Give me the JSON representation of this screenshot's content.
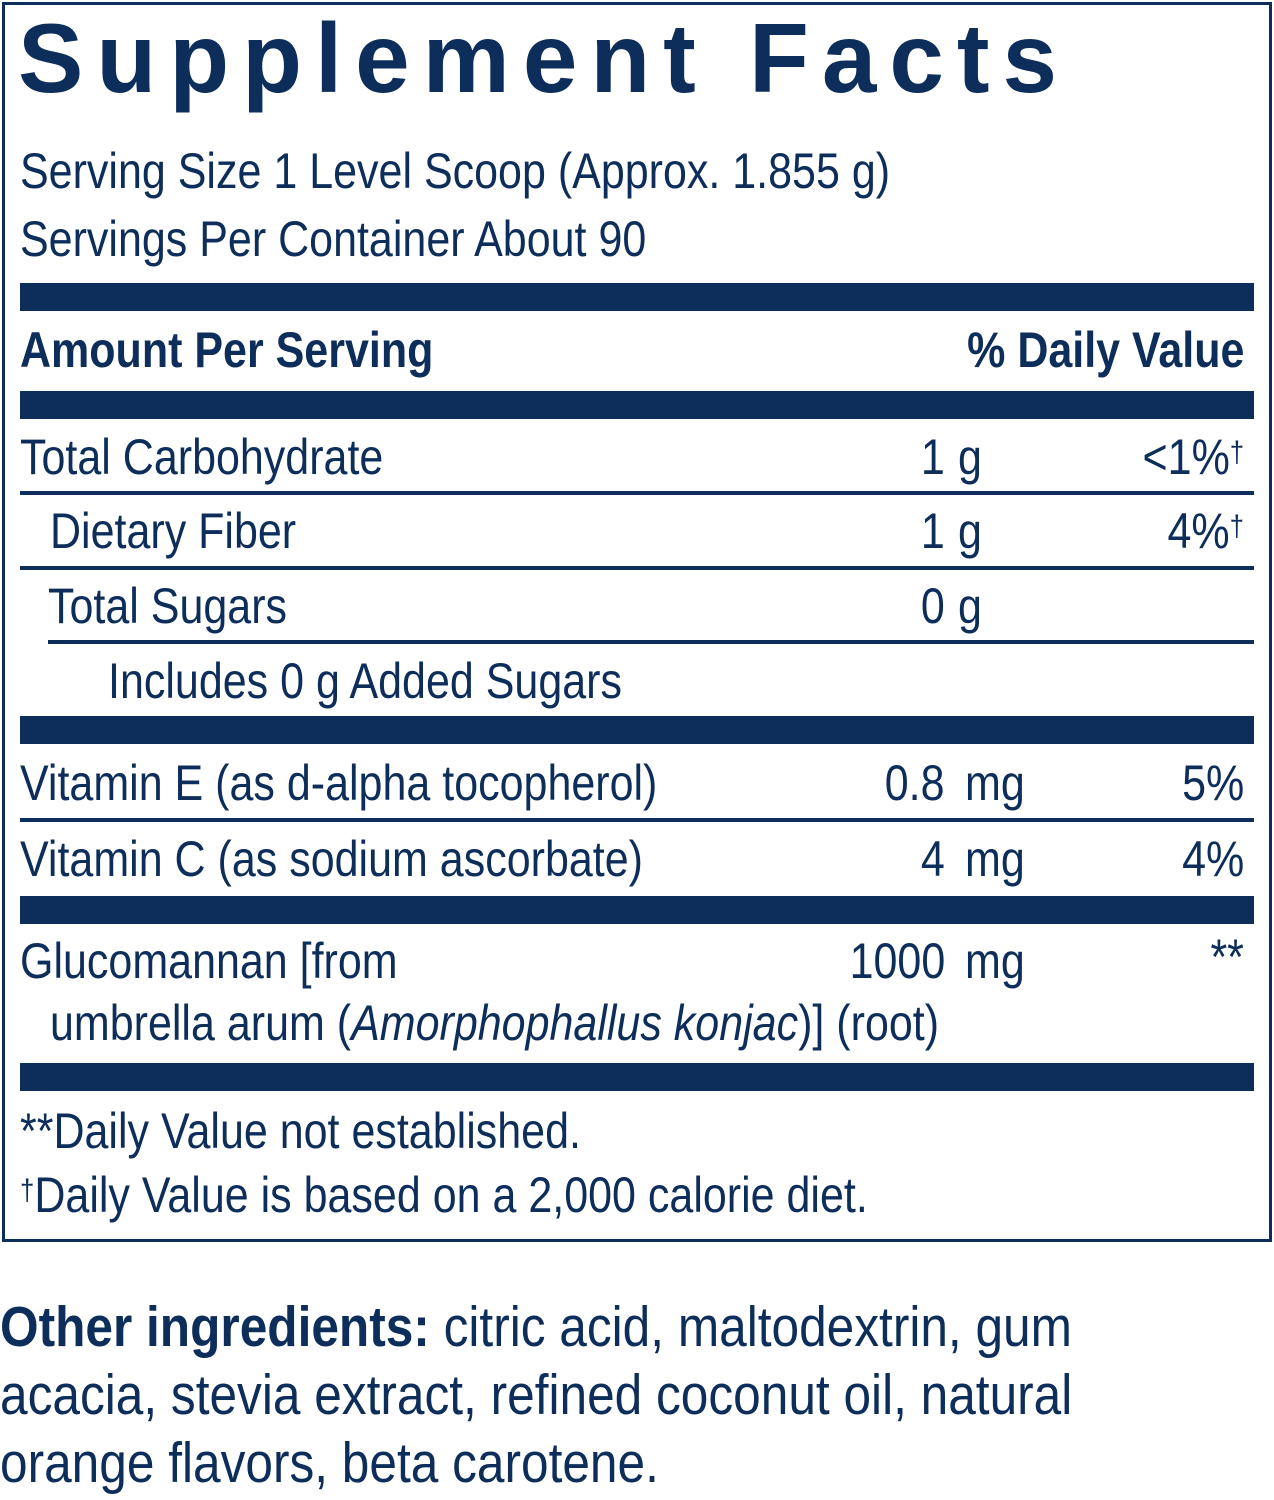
{
  "title": "Supplement Facts",
  "serving_size": "Serving Size 1 Level Scoop (Approx. 1.855 g)",
  "servings_per_container": "Servings Per Container About 90",
  "header": {
    "amount": "Amount Per Serving",
    "daily_value": "% Daily Value"
  },
  "rows": [
    {
      "name": "Total Carbohydrate",
      "qty": "1",
      "unit": "g",
      "dv": "<1%",
      "dv_mark": "†"
    },
    {
      "name": "Dietary Fiber",
      "qty": "1",
      "unit": "g",
      "dv": "4%",
      "dv_mark": "†"
    },
    {
      "name": "Total Sugars",
      "qty": "0",
      "unit": "g",
      "dv": "",
      "dv_mark": ""
    },
    {
      "name": "Includes 0 g Added Sugars"
    },
    {
      "name": "Vitamin E (as d-alpha tocopherol)",
      "qty": "0.8",
      "unit": "mg",
      "dv": "5%"
    },
    {
      "name": "Vitamin C (as sodium ascorbate)",
      "qty": "4",
      "unit": "mg",
      "dv": "4%"
    },
    {
      "name_line1": "Glucomannan [from",
      "name_line2_pre": "umbrella arum (",
      "name_line2_italic": "Amorphophallus konjac",
      "name_line2_post": ")] (root)",
      "qty": "1000",
      "unit": "mg",
      "dv": "**"
    }
  ],
  "footnotes": {
    "dv_not_established": "**Daily Value not established.",
    "dagger": "†",
    "calorie_diet": "Daily Value is based on a 2,000 calorie diet."
  },
  "other_ingredients": {
    "label": "Other ingredients:",
    "line1": " citric acid, maltodextrin, gum",
    "line2": "acacia, stevia extract, refined coconut oil, natural",
    "line3": "orange flavors, beta carotene."
  }
}
